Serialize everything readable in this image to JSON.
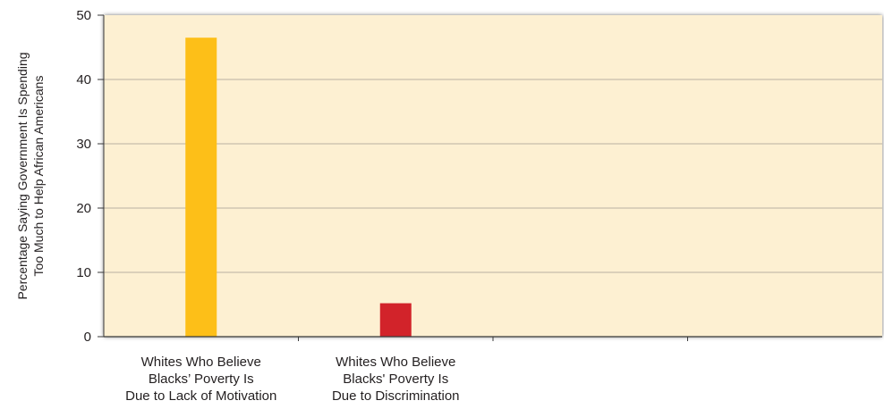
{
  "chart_data": {
    "type": "bar",
    "categories": [
      [
        "Whites Who Believe",
        "Blacks’ Poverty Is",
        "Due to Lack of Motivation"
      ],
      [
        "Whites Who Believe",
        "Blacks' Poverty Is",
        "Due to Discrimination"
      ],
      [],
      []
    ],
    "values": [
      46.5,
      5.2,
      null,
      null
    ],
    "bar_colors": [
      "#fdbf18",
      "#d2232a",
      null,
      null
    ],
    "ylim": [
      0,
      50
    ],
    "yticks": [
      0,
      10,
      20,
      30,
      40,
      50
    ],
    "ylabel_lines": [
      "Percentage Saying Government Is Spending",
      "Too Much to Help African Americans"
    ],
    "grid": true,
    "legend": "none",
    "colors": {
      "plot_background": "#fdf0d2",
      "gridline": "#b9b1a3",
      "axis": "#3a3a3a",
      "frame_shadow": "#9a9692"
    }
  }
}
